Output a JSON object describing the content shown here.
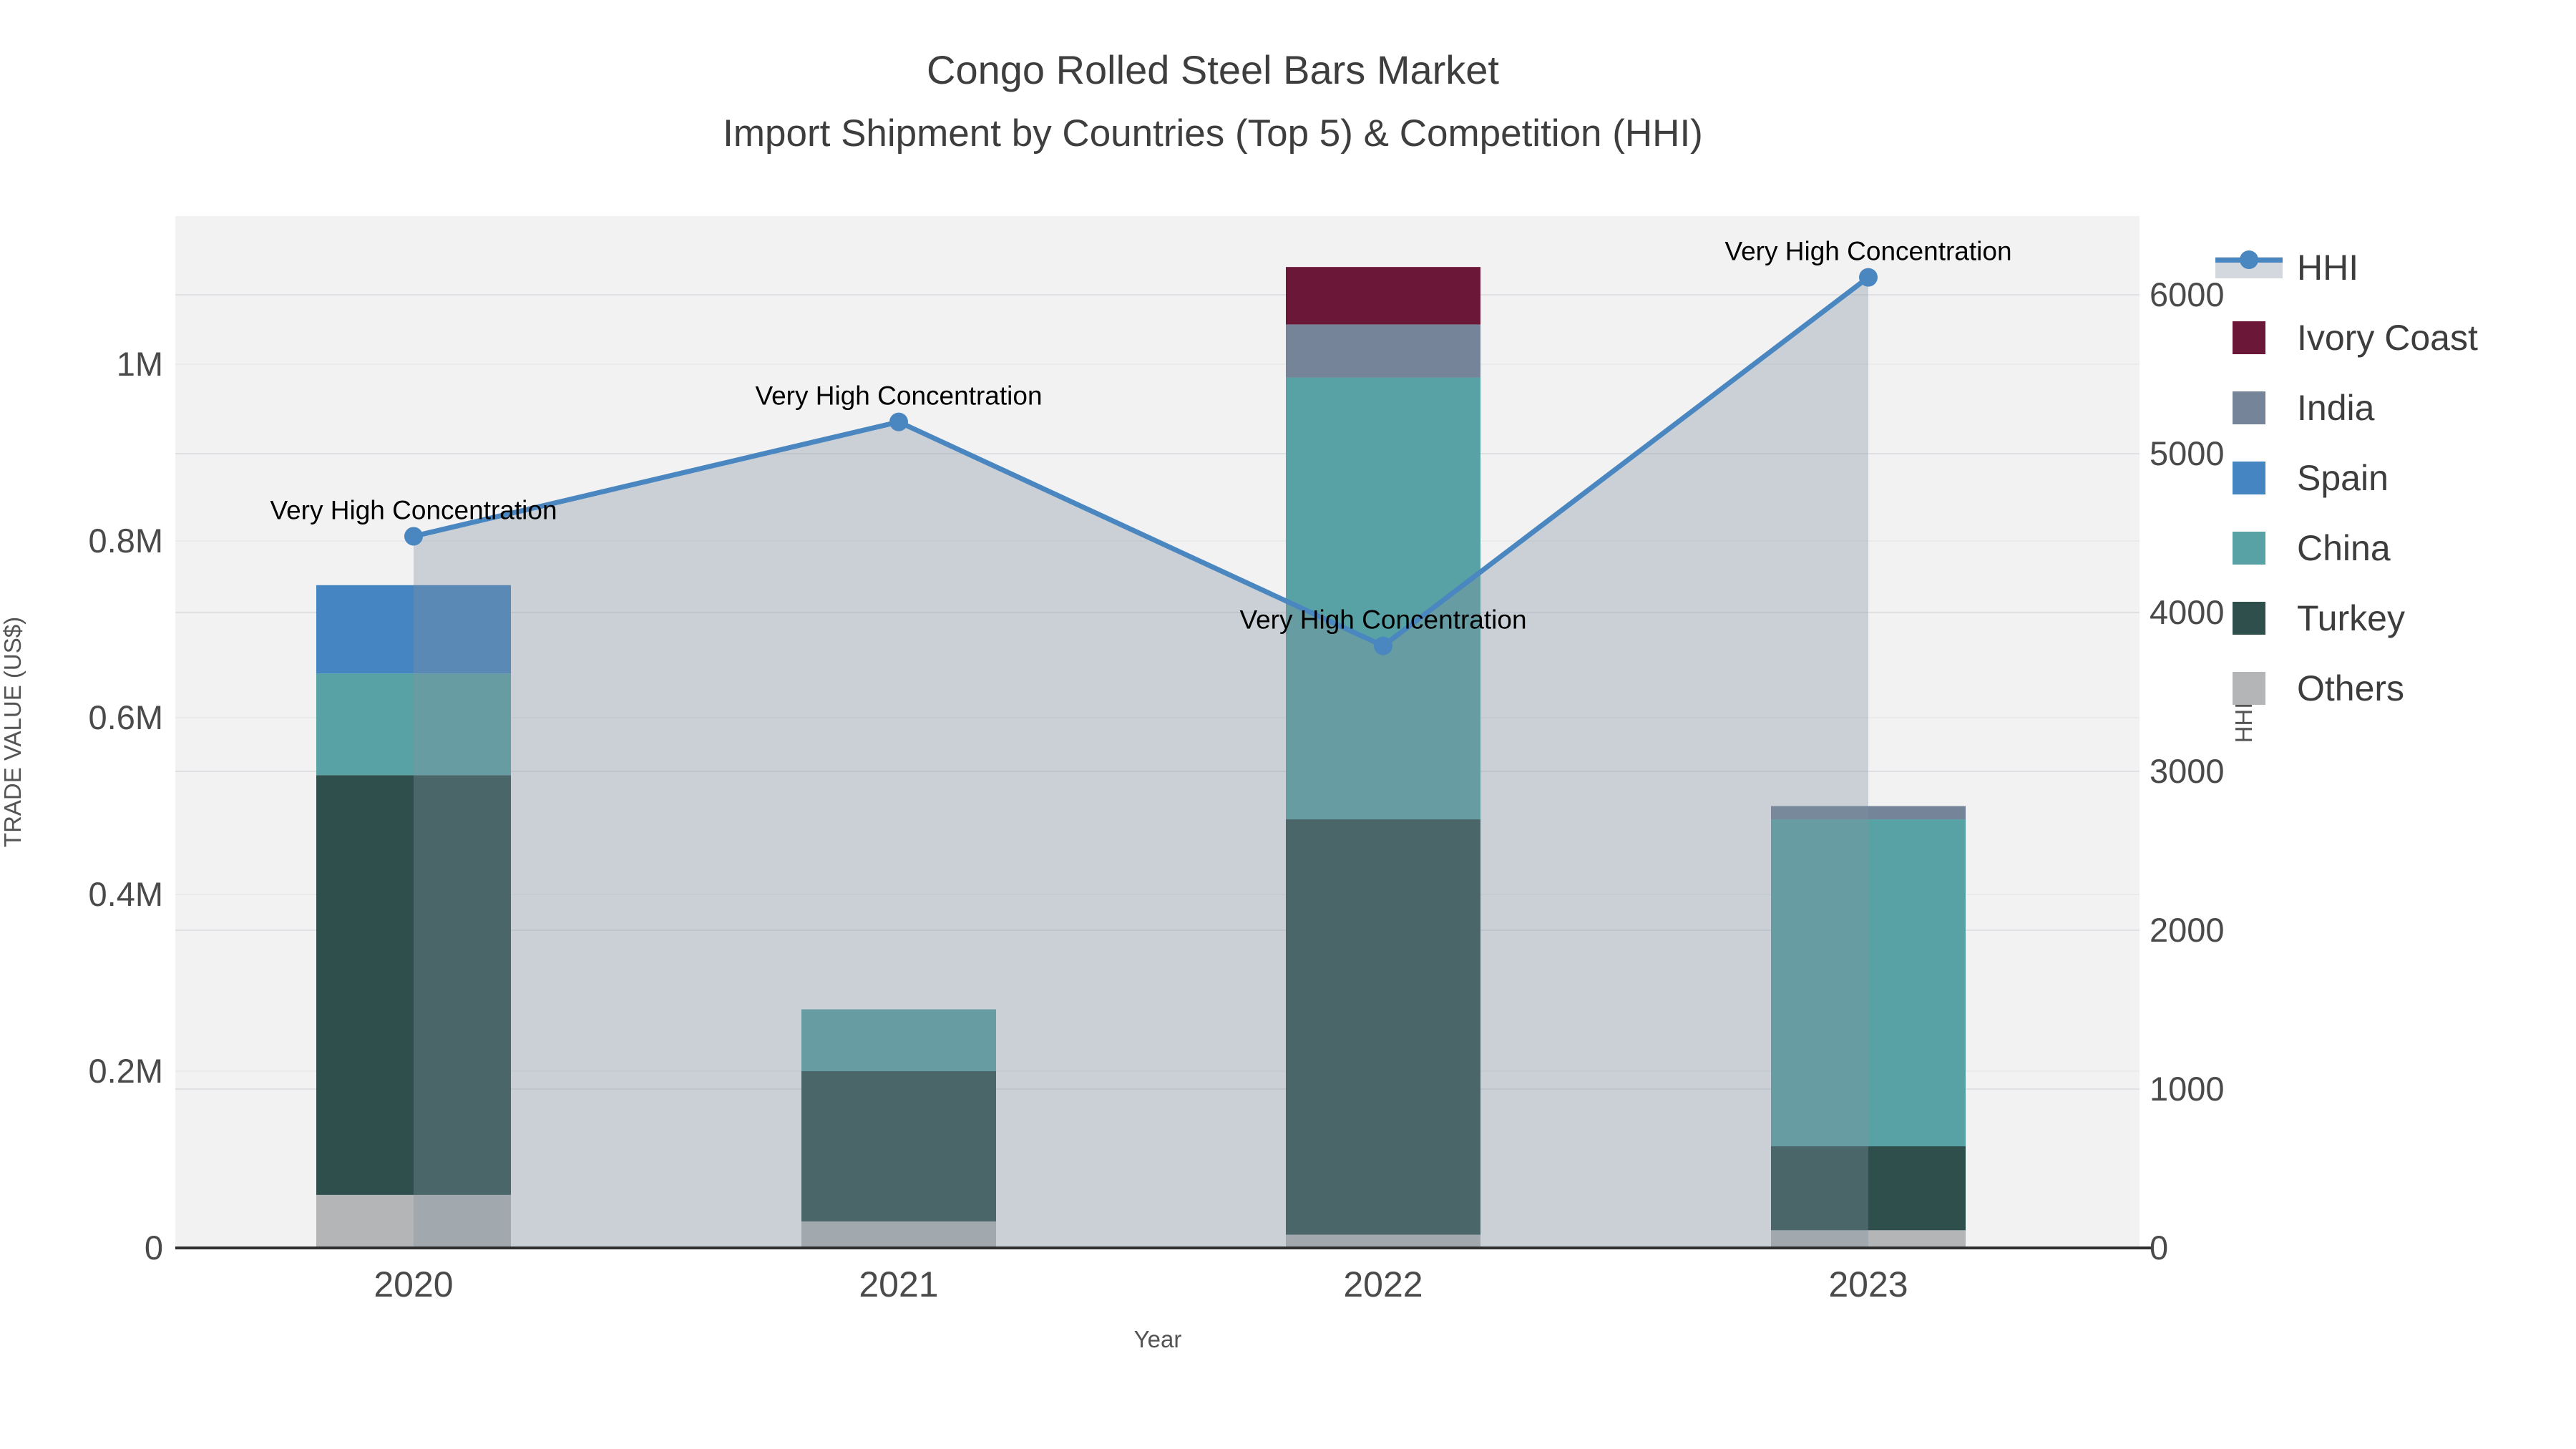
{
  "title": {
    "line1": "Congo Rolled Steel Bars Market",
    "line2": "Import Shipment by Countries (Top 5) & Competition (HHI)"
  },
  "axes": {
    "x": {
      "label": "Year",
      "categories": [
        "2020",
        "2021",
        "2022",
        "2023"
      ]
    },
    "y_left": {
      "label": "TRADE VALUE (US$)",
      "tick_values": [
        0,
        200000,
        400000,
        600000,
        800000,
        1000000
      ],
      "tick_labels": [
        "0",
        "0.2M",
        "0.4M",
        "0.6M",
        "0.8M",
        "1M"
      ]
    },
    "y_right": {
      "label": "HHI",
      "tick_values": [
        0,
        1000,
        2000,
        3000,
        4000,
        5000,
        6000
      ],
      "tick_labels": [
        "0",
        "1000",
        "2000",
        "3000",
        "4000",
        "5000",
        "6000"
      ]
    }
  },
  "legend": {
    "items": [
      {
        "label": "HHI",
        "type": "line",
        "color": "#4a86c0"
      },
      {
        "label": "Ivory Coast",
        "type": "square",
        "color": "#6b1737"
      },
      {
        "label": "India",
        "type": "square",
        "color": "#76849a"
      },
      {
        "label": "Spain",
        "type": "square",
        "color": "#4585c1"
      },
      {
        "label": "China",
        "type": "square",
        "color": "#58a1a4"
      },
      {
        "label": "Turkey",
        "type": "square",
        "color": "#2e4f4c"
      },
      {
        "label": "Others",
        "type": "square",
        "color": "#b3b5b6"
      }
    ]
  },
  "chart_data": {
    "type": "bar",
    "subtype": "stacked bars with secondary-axis line",
    "categories": [
      "2020",
      "2021",
      "2022",
      "2023"
    ],
    "series": [
      {
        "name": "Others",
        "axis": "left",
        "color": "#b3b5b6",
        "values": [
          60000,
          30000,
          15000,
          20000
        ]
      },
      {
        "name": "Turkey",
        "axis": "left",
        "color": "#2e4f4c",
        "values": [
          475000,
          170000,
          470000,
          95000
        ]
      },
      {
        "name": "China",
        "axis": "left",
        "color": "#58a1a4",
        "values": [
          115000,
          70000,
          500000,
          370000
        ]
      },
      {
        "name": "Spain",
        "axis": "left",
        "color": "#4585c1",
        "values": [
          100000,
          0,
          0,
          0
        ]
      },
      {
        "name": "India",
        "axis": "left",
        "color": "#76849a",
        "values": [
          0,
          0,
          60000,
          15000
        ]
      },
      {
        "name": "Ivory Coast",
        "axis": "left",
        "color": "#6b1737",
        "values": [
          0,
          0,
          65000,
          0
        ]
      }
    ],
    "line_series": {
      "name": "HHI",
      "axis": "right",
      "color": "#4a86c0",
      "area_fill": "rgba(130,145,160,0.35)",
      "values": [
        4480,
        5200,
        3790,
        6110
      ]
    },
    "annotations": [
      {
        "text": "Very High Concentration",
        "category_index": 0
      },
      {
        "text": "Very High Concentration",
        "category_index": 1
      },
      {
        "text": "Very High Concentration",
        "category_index": 2
      },
      {
        "text": "Very High Concentration",
        "category_index": 3
      }
    ],
    "title": "Congo Rolled Steel Bars Market Import Shipment by Countries (Top 5) & Competition (HHI)",
    "xlabel": "Year",
    "ylabel": "TRADE VALUE (US$)",
    "ylabel_right": "HHI",
    "ylim_left": [
      0,
      1160000
    ],
    "ylim_right": [
      0,
      6495
    ],
    "grid": true,
    "legend_position": "right"
  },
  "style": {
    "plot_bg": "#f2f2f3",
    "grid_right": "#dfe1e4",
    "grid_left": "#e9eaec",
    "axis_line": "#2f2f2f",
    "tick_color": "#4a4a4a",
    "annotation_color": "#000000"
  }
}
